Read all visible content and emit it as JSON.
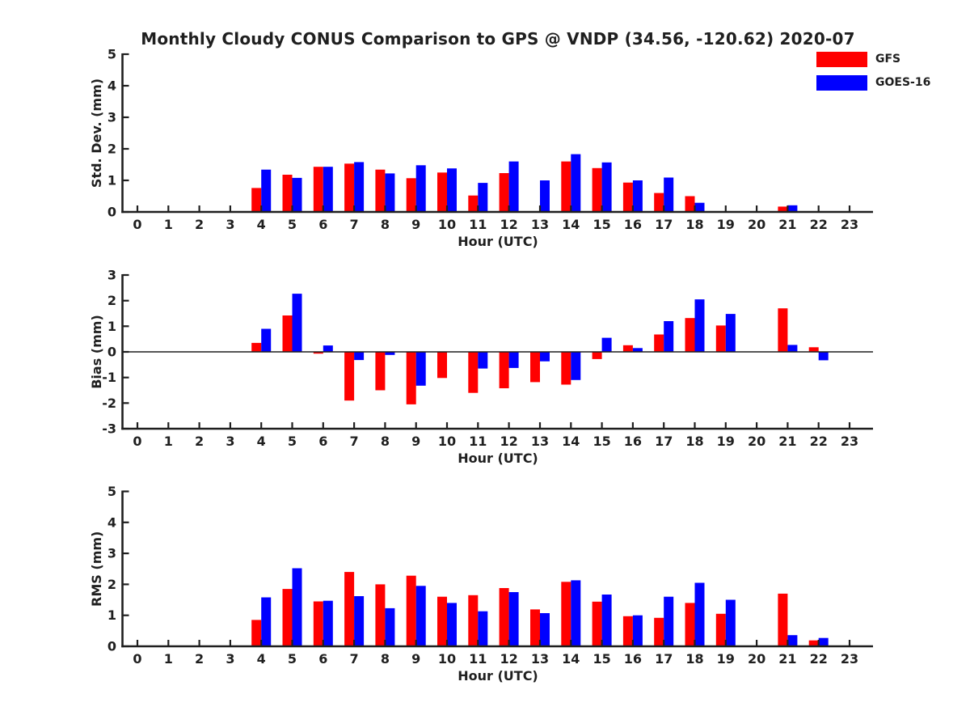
{
  "title": "Monthly Cloudy CONUS Comparison to GPS @ VNDP (34.56, -120.62) 2020-07",
  "legend": [
    {
      "label": "GFS",
      "color": "#ff0000"
    },
    {
      "label": "GOES-16",
      "color": "#0000ff"
    }
  ],
  "chart_data": [
    {
      "id": "std-dev",
      "type": "bar",
      "ylabel": "Std. Dev. (mm)",
      "xlabel": "Hour (UTC)",
      "ylim": [
        0,
        5
      ],
      "yticks": [
        0,
        1,
        2,
        3,
        4,
        5
      ],
      "categories": [
        0,
        1,
        2,
        3,
        4,
        5,
        6,
        7,
        8,
        9,
        10,
        11,
        12,
        13,
        14,
        15,
        16,
        17,
        18,
        19,
        20,
        21,
        22,
        23
      ],
      "legend_position": "top-right-outside",
      "grid": false,
      "series": [
        {
          "name": "GFS",
          "color": "#ff0000",
          "values": [
            null,
            null,
            null,
            null,
            0.76,
            1.18,
            1.43,
            1.53,
            1.34,
            1.07,
            1.25,
            0.52,
            1.23,
            null,
            1.6,
            1.39,
            0.93,
            0.6,
            0.5,
            null,
            null,
            0.17,
            null,
            null
          ]
        },
        {
          "name": "GOES-16",
          "color": "#0000ff",
          "values": [
            null,
            null,
            null,
            null,
            1.34,
            1.08,
            1.43,
            1.58,
            1.22,
            1.48,
            1.38,
            0.92,
            1.6,
            1.0,
            1.83,
            1.57,
            1.0,
            1.09,
            0.29,
            null,
            null,
            0.21,
            null,
            null
          ]
        }
      ]
    },
    {
      "id": "bias",
      "type": "bar",
      "ylabel": "Bias (mm)",
      "xlabel": "Hour (UTC)",
      "ylim": [
        -3,
        3
      ],
      "yticks": [
        -3,
        -2,
        -1,
        0,
        1,
        2,
        3
      ],
      "categories": [
        0,
        1,
        2,
        3,
        4,
        5,
        6,
        7,
        8,
        9,
        10,
        11,
        12,
        13,
        14,
        15,
        16,
        17,
        18,
        19,
        20,
        21,
        22,
        23
      ],
      "grid": false,
      "series": [
        {
          "name": "GFS",
          "color": "#ff0000",
          "values": [
            null,
            null,
            null,
            null,
            0.35,
            1.42,
            -0.07,
            -1.9,
            -1.5,
            -2.05,
            -1.02,
            -1.6,
            -1.42,
            -1.18,
            -1.28,
            -0.28,
            0.26,
            0.68,
            1.32,
            1.03,
            null,
            1.7,
            0.18,
            null
          ]
        },
        {
          "name": "GOES-16",
          "color": "#0000ff",
          "values": [
            null,
            null,
            null,
            null,
            0.9,
            2.27,
            0.25,
            -0.32,
            -0.12,
            -1.32,
            null,
            -0.65,
            -0.63,
            -0.37,
            -1.1,
            0.55,
            0.15,
            1.2,
            2.05,
            1.48,
            null,
            0.27,
            -0.33,
            null
          ]
        }
      ]
    },
    {
      "id": "rms",
      "type": "bar",
      "ylabel": "RMS (mm)",
      "xlabel": "Hour (UTC)",
      "ylim": [
        0,
        5
      ],
      "yticks": [
        0,
        1,
        2,
        3,
        4,
        5
      ],
      "categories": [
        0,
        1,
        2,
        3,
        4,
        5,
        6,
        7,
        8,
        9,
        10,
        11,
        12,
        13,
        14,
        15,
        16,
        17,
        18,
        19,
        20,
        21,
        22,
        23
      ],
      "grid": false,
      "series": [
        {
          "name": "GFS",
          "color": "#ff0000",
          "values": [
            null,
            null,
            null,
            null,
            0.85,
            1.85,
            1.45,
            2.4,
            2.0,
            2.28,
            1.6,
            1.65,
            1.88,
            1.19,
            2.08,
            1.44,
            0.97,
            0.92,
            1.4,
            1.05,
            null,
            1.7,
            0.19,
            null
          ]
        },
        {
          "name": "GOES-16",
          "color": "#0000ff",
          "values": [
            null,
            null,
            null,
            null,
            1.58,
            2.52,
            1.47,
            1.62,
            1.23,
            1.95,
            1.4,
            1.13,
            1.75,
            1.07,
            2.13,
            1.67,
            1.0,
            1.6,
            2.05,
            1.5,
            null,
            0.36,
            0.27,
            null
          ]
        }
      ]
    }
  ]
}
